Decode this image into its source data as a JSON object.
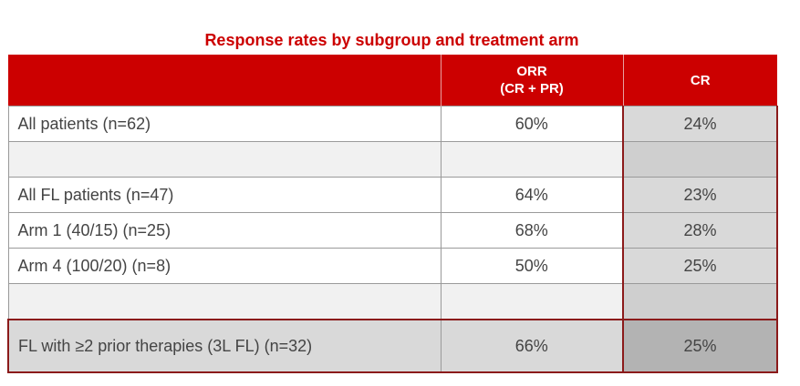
{
  "title": "Response rates by subgroup and treatment arm",
  "header": {
    "col1": "",
    "orr_line1": "ORR",
    "orr_line2": "(CR + PR)",
    "cr": "CR"
  },
  "rows": [
    {
      "label": "All patients (n=62)",
      "orr": "60%",
      "cr": "24%"
    },
    {
      "label": "",
      "orr": "",
      "cr": ""
    },
    {
      "label": "All FL patients (n=47)",
      "orr": "64%",
      "cr": "23%"
    },
    {
      "label": "Arm 1 (40/15) (n=25)",
      "orr": "68%",
      "cr": "28%"
    },
    {
      "label": "Arm 4 (100/20) (n=8)",
      "orr": "50%",
      "cr": "25%"
    },
    {
      "label": "",
      "orr": "",
      "cr": ""
    },
    {
      "label": "FL with ≥2 prior therapies (3L FL) (n=32)",
      "orr": "66%",
      "cr": "25%"
    }
  ],
  "colors": {
    "title": "#cc0000",
    "header_background": "#cc0000",
    "highlight_border": "#8b1a1a",
    "cr_column_background": "#d9d9d9"
  }
}
